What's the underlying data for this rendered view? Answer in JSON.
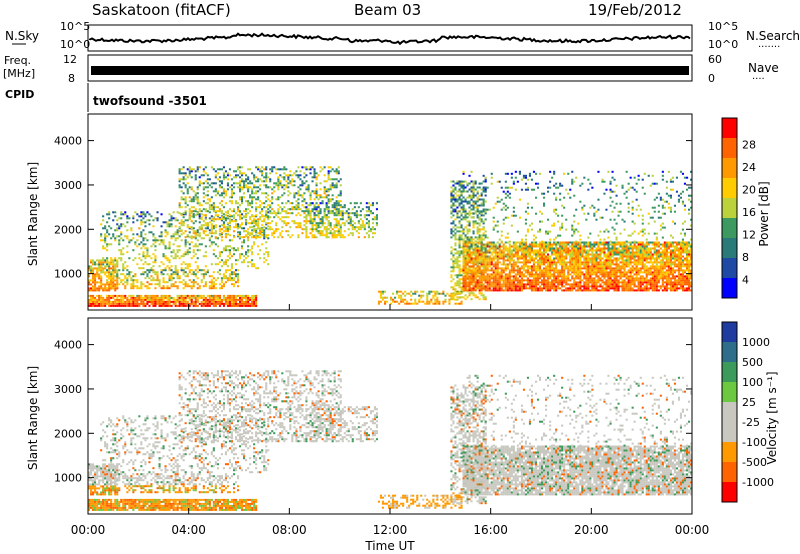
{
  "header": {
    "station": "Saskatoon (fitACF)",
    "beam": "Beam 03",
    "date": "19/Feb/2012"
  },
  "top_panels": {
    "nsky": {
      "left_label": "N.Sky",
      "ticks_left": [
        "10^5",
        "10^0"
      ],
      "right_label": "N.Search",
      "ticks_right": [
        "10^5",
        "10^0"
      ]
    },
    "freq": {
      "label_top": "Freq.",
      "label_bottom": "[MHz]",
      "ticks_left": [
        "12",
        "8"
      ],
      "right_label": "Nave",
      "ticks_right": [
        "60",
        "0"
      ]
    },
    "cpid": {
      "label": "CPID",
      "value": "twofsound -3501"
    }
  },
  "icons": {
    "nsky-trace": "noise-trace",
    "freq-trace": "frequency-trace"
  },
  "chart_data": [
    {
      "type": "heatmap",
      "title": "Power",
      "ylabel": "Slant Range [km]",
      "xlabel": "",
      "x_ticks": [
        "00:00",
        "04:00",
        "08:00",
        "12:00",
        "16:00",
        "20:00",
        "00:00"
      ],
      "y_ticks": [
        1000,
        2000,
        3000,
        4000
      ],
      "ylim": [
        180,
        4600
      ],
      "colorbar": {
        "label": "Power [dB]",
        "ticks": [
          "28",
          "24",
          "20",
          "16",
          "12",
          "8",
          "4"
        ],
        "colors": [
          "#ff0000",
          "#ff6400",
          "#ff9900",
          "#ffcc00",
          "#bcd23c",
          "#3c9960",
          "#2a7a7a",
          "#1e4aa6",
          "#0000ff"
        ]
      },
      "grid": false
    },
    {
      "type": "heatmap",
      "title": "Velocity",
      "ylabel": "Slant Range [km]",
      "xlabel": "Time UT",
      "x_ticks": [
        "00:00",
        "04:00",
        "08:00",
        "12:00",
        "16:00",
        "20:00",
        "00:00"
      ],
      "y_ticks": [
        1000,
        2000,
        3000,
        4000
      ],
      "ylim": [
        180,
        4600
      ],
      "colorbar": {
        "label": "Velocity [m s⁻¹]",
        "ticks": [
          "1000",
          "500",
          "100",
          "25",
          "-25",
          "-100",
          "-500",
          "-1000"
        ],
        "colors": [
          "#1e3ca0",
          "#2e6e8a",
          "#3c9a5a",
          "#6cc840",
          "#c8c8c0",
          "#c8c8c0",
          "#ff9900",
          "#ff6400",
          "#ff0000"
        ]
      },
      "grid": false
    }
  ]
}
